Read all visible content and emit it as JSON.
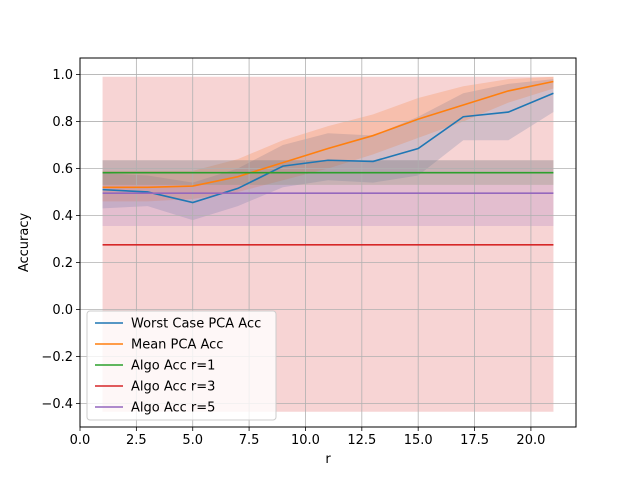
{
  "chart_data": {
    "type": "line",
    "xlabel": "r",
    "ylabel": "Accuracy",
    "xlim": [
      0.0,
      22.0
    ],
    "ylim": [
      -0.5,
      1.07
    ],
    "xticks": [
      "0.0",
      "2.5",
      "5.0",
      "7.5",
      "10.0",
      "12.5",
      "15.0",
      "17.5",
      "20.0"
    ],
    "xtick_values": [
      0,
      2.5,
      5,
      7.5,
      10,
      12.5,
      15,
      17.5,
      20
    ],
    "yticks": [
      "−0.4",
      "−0.2",
      "0.0",
      "0.2",
      "0.4",
      "0.6",
      "0.8",
      "1.0"
    ],
    "ytick_values": [
      -0.4,
      -0.2,
      0.0,
      0.2,
      0.4,
      0.6,
      0.8,
      1.0
    ],
    "grid": true,
    "legend_position": "lower-left",
    "x": [
      1,
      3,
      5,
      7,
      9,
      11,
      13,
      15,
      17,
      19,
      21
    ],
    "series": [
      {
        "name": "Worst Case PCA Acc",
        "color": "#1f77b4",
        "values": [
          0.51,
          0.5,
          0.455,
          0.515,
          0.61,
          0.635,
          0.63,
          0.685,
          0.82,
          0.84,
          0.92
        ],
        "band_lower": [
          0.43,
          0.44,
          0.38,
          0.44,
          0.52,
          0.55,
          0.54,
          0.57,
          0.72,
          0.72,
          0.84
        ],
        "band_upper": [
          0.58,
          0.57,
          0.54,
          0.6,
          0.7,
          0.75,
          0.74,
          0.82,
          0.92,
          0.96,
          0.98
        ]
      },
      {
        "name": "Mean PCA Acc",
        "color": "#ff7f0e",
        "values": [
          0.52,
          0.52,
          0.525,
          0.565,
          0.625,
          0.685,
          0.74,
          0.81,
          0.87,
          0.93,
          0.97
        ],
        "band_lower": [
          0.46,
          0.46,
          0.47,
          0.5,
          0.55,
          0.6,
          0.66,
          0.73,
          0.8,
          0.88,
          0.94
        ],
        "band_upper": [
          0.59,
          0.59,
          0.59,
          0.64,
          0.72,
          0.78,
          0.83,
          0.9,
          0.95,
          0.98,
          0.99
        ]
      },
      {
        "name": "Algo Acc r=1",
        "color": "#2ca02c",
        "values": [
          0.582,
          0.582,
          0.582,
          0.582,
          0.582,
          0.582,
          0.582,
          0.582,
          0.582,
          0.582,
          0.582
        ],
        "band_lower": [
          0.53,
          0.53,
          0.53,
          0.53,
          0.53,
          0.53,
          0.53,
          0.53,
          0.53,
          0.53,
          0.53
        ],
        "band_upper": [
          0.635,
          0.635,
          0.635,
          0.635,
          0.635,
          0.635,
          0.635,
          0.635,
          0.635,
          0.635,
          0.635
        ]
      },
      {
        "name": "Algo Acc r=3",
        "color": "#d62728",
        "values": [
          0.275,
          0.275,
          0.275,
          0.275,
          0.275,
          0.275,
          0.275,
          0.275,
          0.275,
          0.275,
          0.275
        ],
        "band_lower": [
          -0.435,
          -0.435,
          -0.435,
          -0.435,
          -0.435,
          -0.435,
          -0.435,
          -0.435,
          -0.435,
          -0.435,
          -0.435
        ],
        "band_upper": [
          0.99,
          0.99,
          0.99,
          0.99,
          0.99,
          0.99,
          0.99,
          0.99,
          0.99,
          0.99,
          0.99
        ]
      },
      {
        "name": "Algo Acc r=5",
        "color": "#9467bd",
        "values": [
          0.495,
          0.495,
          0.495,
          0.495,
          0.495,
          0.495,
          0.495,
          0.495,
          0.495,
          0.495,
          0.495
        ],
        "band_lower": [
          0.355,
          0.355,
          0.355,
          0.355,
          0.355,
          0.355,
          0.355,
          0.355,
          0.355,
          0.355,
          0.355
        ],
        "band_upper": [
          0.635,
          0.635,
          0.635,
          0.635,
          0.635,
          0.635,
          0.635,
          0.635,
          0.635,
          0.635,
          0.635
        ]
      }
    ]
  }
}
